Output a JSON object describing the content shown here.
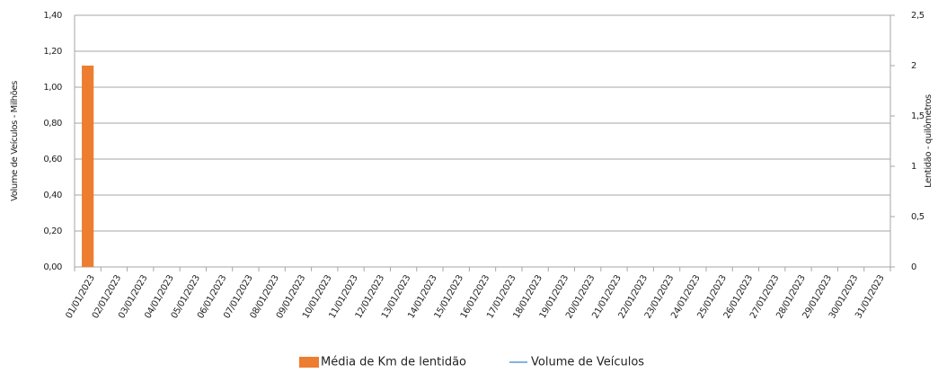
{
  "chart_data": {
    "type": "bar",
    "y_label": "Volume de Veículos  - Milhões",
    "y2_label": "Lentidão - quilômetros",
    "categories": [
      "01/01/2023",
      "02/01/2023",
      "03/01/2023",
      "04/01/2023",
      "05/01/2023",
      "06/01/2023",
      "07/01/2023",
      "08/01/2023",
      "09/01/2023",
      "10/01/2023",
      "11/01/2023",
      "12/01/2023",
      "13/01/2023",
      "14/01/2023",
      "15/01/2023",
      "16/01/2023",
      "17/01/2023",
      "18/01/2023",
      "19/01/2023",
      "20/01/2023",
      "21/01/2023",
      "22/01/2023",
      "23/01/2023",
      "24/01/2023",
      "25/01/2023",
      "26/01/2023",
      "27/01/2023",
      "28/01/2023",
      "29/01/2023",
      "30/01/2023",
      "31/01/2023"
    ],
    "series": [
      {
        "name": "Média de Km de lentidão",
        "type": "bar",
        "axis": "y2",
        "color": "#ed7d31",
        "values": [
          2,
          null,
          null,
          null,
          null,
          null,
          null,
          null,
          null,
          null,
          null,
          null,
          null,
          null,
          null,
          null,
          null,
          null,
          null,
          null,
          null,
          null,
          null,
          null,
          null,
          null,
          null,
          null,
          null,
          null,
          null
        ]
      },
      {
        "name": "Volume de Veículos",
        "type": "line",
        "color": "#5b9bd5",
        "values": [
          null,
          null,
          null,
          null,
          null,
          null,
          null,
          null,
          null,
          null,
          null,
          null,
          null,
          null,
          null,
          null,
          null,
          null,
          null,
          null,
          null,
          null,
          null,
          null,
          null,
          null,
          null,
          null,
          null,
          null,
          null
        ]
      }
    ],
    "ylim": [
      0,
      1.4
    ],
    "yticks": [
      {
        "value": 0,
        "label": "0,00"
      },
      {
        "value": 0.2,
        "label": "0,20"
      },
      {
        "value": 0.4,
        "label": "0,40"
      },
      {
        "value": 0.6,
        "label": "0,60"
      },
      {
        "value": 0.8,
        "label": "0,80"
      },
      {
        "value": 1,
        "label": "1,00"
      },
      {
        "value": 1.2,
        "label": "1,20"
      },
      {
        "value": 1.4,
        "label": "1,40"
      }
    ],
    "y2lim": [
      0,
      2.5
    ],
    "y2ticks": [
      0,
      {
        "value": 0.5,
        "label": "0,5"
      },
      1,
      {
        "value": 1.5,
        "label": "1,5"
      },
      2,
      {
        "value": 2.5,
        "label": "2,5"
      }
    ],
    "grid": true,
    "legend": "bottom"
  }
}
